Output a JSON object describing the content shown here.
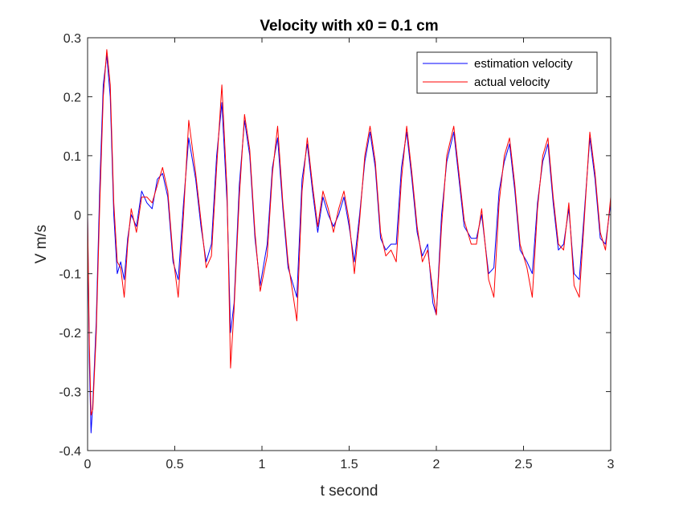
{
  "chart_data": {
    "type": "line",
    "title": "Velocity with x0 = 0.1 cm",
    "xlabel": "t second",
    "ylabel": "V m/s",
    "xlim": [
      0,
      3
    ],
    "ylim": [
      -0.4,
      0.3
    ],
    "xticks": [
      "0",
      "0.5",
      "1",
      "1.5",
      "2",
      "2.5",
      "3"
    ],
    "yticks": [
      "0.3",
      "0.2",
      "0.1",
      "0",
      "-0.1",
      "-0.2",
      "-0.3",
      "-0.4"
    ],
    "grid": false,
    "legend_position": "top-right",
    "series": [
      {
        "name": "estimation velocity",
        "color": "#0000ff",
        "x": [
          0,
          0.01,
          0.02,
          0.03,
          0.05,
          0.07,
          0.09,
          0.11,
          0.13,
          0.15,
          0.17,
          0.19,
          0.21,
          0.23,
          0.25,
          0.28,
          0.31,
          0.34,
          0.37,
          0.4,
          0.43,
          0.46,
          0.49,
          0.52,
          0.55,
          0.58,
          0.62,
          0.65,
          0.68,
          0.71,
          0.74,
          0.77,
          0.8,
          0.82,
          0.84,
          0.87,
          0.9,
          0.93,
          0.96,
          0.99,
          1.03,
          1.06,
          1.09,
          1.12,
          1.15,
          1.18,
          1.2,
          1.23,
          1.26,
          1.29,
          1.32,
          1.35,
          1.38,
          1.41,
          1.44,
          1.47,
          1.5,
          1.53,
          1.56,
          1.59,
          1.62,
          1.65,
          1.68,
          1.71,
          1.74,
          1.77,
          1.8,
          1.83,
          1.86,
          1.89,
          1.92,
          1.95,
          1.98,
          2.0,
          2.03,
          2.06,
          2.1,
          2.13,
          2.16,
          2.2,
          2.23,
          2.26,
          2.3,
          2.33,
          2.36,
          2.39,
          2.42,
          2.45,
          2.48,
          2.52,
          2.55,
          2.58,
          2.61,
          2.64,
          2.67,
          2.7,
          2.73,
          2.76,
          2.79,
          2.82,
          2.85,
          2.88,
          2.91,
          2.94,
          2.97,
          3.0
        ],
        "values": [
          0,
          -0.25,
          -0.37,
          -0.32,
          -0.18,
          0.05,
          0.22,
          0.27,
          0.2,
          0.0,
          -0.1,
          -0.08,
          -0.11,
          -0.04,
          0.0,
          -0.02,
          0.04,
          0.02,
          0.01,
          0.06,
          0.07,
          0.03,
          -0.08,
          -0.11,
          0.02,
          0.13,
          0.06,
          -0.02,
          -0.08,
          -0.05,
          0.1,
          0.19,
          0.02,
          -0.2,
          -0.15,
          0.05,
          0.16,
          0.1,
          -0.04,
          -0.12,
          -0.05,
          0.08,
          0.13,
          0.01,
          -0.09,
          -0.12,
          -0.14,
          0.06,
          0.12,
          0.04,
          -0.03,
          0.03,
          0.0,
          -0.02,
          0.0,
          0.03,
          -0.02,
          -0.08,
          0.0,
          0.09,
          0.14,
          0.08,
          -0.04,
          -0.06,
          -0.05,
          -0.05,
          0.08,
          0.14,
          0.06,
          -0.03,
          -0.07,
          -0.05,
          -0.15,
          -0.17,
          0.0,
          0.09,
          0.14,
          0.06,
          -0.02,
          -0.04,
          -0.04,
          0.0,
          -0.1,
          -0.09,
          0.04,
          0.09,
          0.12,
          0.04,
          -0.06,
          -0.08,
          -0.1,
          0.02,
          0.09,
          0.12,
          0.02,
          -0.06,
          -0.05,
          0.01,
          -0.1,
          -0.11,
          0.01,
          0.13,
          0.06,
          -0.04,
          -0.05,
          0.02
        ]
      },
      {
        "name": "actual velocity",
        "color": "#ff0000",
        "x": [
          0,
          0.01,
          0.02,
          0.03,
          0.05,
          0.07,
          0.09,
          0.11,
          0.13,
          0.15,
          0.17,
          0.19,
          0.21,
          0.23,
          0.25,
          0.28,
          0.31,
          0.34,
          0.37,
          0.4,
          0.43,
          0.46,
          0.49,
          0.52,
          0.55,
          0.58,
          0.62,
          0.65,
          0.68,
          0.71,
          0.74,
          0.77,
          0.8,
          0.82,
          0.84,
          0.87,
          0.9,
          0.93,
          0.96,
          0.99,
          1.03,
          1.06,
          1.09,
          1.12,
          1.15,
          1.18,
          1.2,
          1.23,
          1.26,
          1.29,
          1.32,
          1.35,
          1.38,
          1.41,
          1.44,
          1.47,
          1.5,
          1.53,
          1.56,
          1.59,
          1.62,
          1.65,
          1.68,
          1.71,
          1.74,
          1.77,
          1.8,
          1.83,
          1.86,
          1.89,
          1.92,
          1.95,
          1.98,
          2.0,
          2.03,
          2.06,
          2.1,
          2.13,
          2.16,
          2.2,
          2.23,
          2.26,
          2.3,
          2.33,
          2.36,
          2.39,
          2.42,
          2.45,
          2.48,
          2.52,
          2.55,
          2.58,
          2.61,
          2.64,
          2.67,
          2.7,
          2.73,
          2.76,
          2.79,
          2.82,
          2.85,
          2.88,
          2.91,
          2.94,
          2.97,
          3.0
        ],
        "values": [
          0,
          -0.22,
          -0.34,
          -0.33,
          -0.2,
          0.02,
          0.2,
          0.28,
          0.22,
          0.02,
          -0.08,
          -0.09,
          -0.14,
          -0.05,
          0.01,
          -0.03,
          0.03,
          0.03,
          0.02,
          0.05,
          0.08,
          0.04,
          -0.07,
          -0.14,
          0.0,
          0.16,
          0.07,
          -0.01,
          -0.09,
          -0.07,
          0.08,
          0.22,
          0.04,
          -0.26,
          -0.16,
          0.03,
          0.17,
          0.11,
          -0.03,
          -0.13,
          -0.07,
          0.07,
          0.15,
          0.02,
          -0.08,
          -0.14,
          -0.18,
          0.04,
          0.13,
          0.05,
          -0.02,
          0.04,
          0.01,
          -0.03,
          0.01,
          0.04,
          -0.01,
          -0.1,
          -0.01,
          0.1,
          0.15,
          0.09,
          -0.03,
          -0.07,
          -0.06,
          -0.08,
          0.06,
          0.15,
          0.07,
          -0.02,
          -0.08,
          -0.06,
          -0.13,
          -0.17,
          -0.02,
          0.1,
          0.15,
          0.07,
          -0.01,
          -0.05,
          -0.05,
          0.01,
          -0.11,
          -0.14,
          0.02,
          0.1,
          0.13,
          0.05,
          -0.05,
          -0.09,
          -0.14,
          0.01,
          0.1,
          0.13,
          0.03,
          -0.05,
          -0.06,
          0.02,
          -0.12,
          -0.14,
          0.0,
          0.14,
          0.07,
          -0.03,
          -0.06,
          0.03
        ]
      }
    ]
  }
}
